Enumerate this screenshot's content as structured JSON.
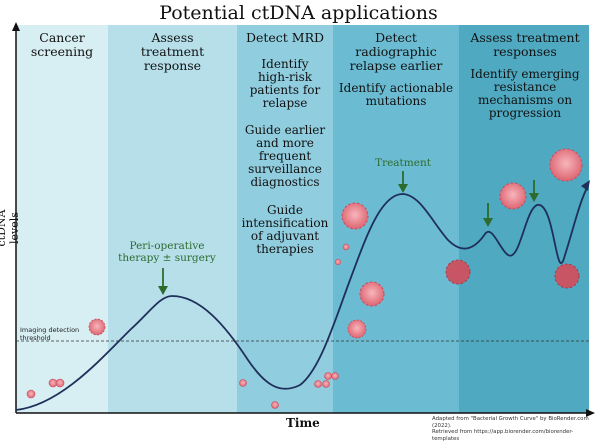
{
  "title": "Potential ctDNA applications",
  "axes": {
    "y_label": "ctDNA levels",
    "x_label": "Time",
    "threshold_label_line1": "Imaging detection",
    "threshold_label_line2": "threshold"
  },
  "phases": [
    {
      "name": "cancer-screening",
      "lines": [
        "Cancer",
        "screening"
      ],
      "color": "#d7eef3"
    },
    {
      "name": "assess-treatment-response",
      "lines": [
        "Assess",
        "treatment",
        "response"
      ],
      "color": "#b6dfea"
    },
    {
      "name": "detect-mrd",
      "lines": [
        "Detect MRD"
      ],
      "color": "#90cddf"
    },
    {
      "name": "detect-radiographic-relapse",
      "lines": [
        "Detect radiographic",
        "relapse earlier"
      ],
      "color": "#6bbcd3"
    },
    {
      "name": "assess-treatment-responses",
      "lines": [
        "Assess treatment",
        "responses"
      ],
      "color": "#4fa9c1"
    }
  ],
  "mrd_items": [
    {
      "name": "identify-high-risk",
      "lines": [
        "Identify",
        "high-risk",
        "patients for",
        "relapse"
      ]
    },
    {
      "name": "guide-surveillance",
      "lines": [
        "Guide earlier",
        "and more",
        "frequent",
        "surveillance",
        "diagnostics"
      ]
    },
    {
      "name": "guide-intensification",
      "lines": [
        "Guide",
        "intensification",
        "of adjuvant",
        "therapies"
      ]
    }
  ],
  "relapse_items": [
    {
      "name": "identify-actionable-mutations",
      "lines": [
        "Identify actionable",
        "mutations"
      ]
    }
  ],
  "response_items": [
    {
      "name": "identify-resistance",
      "lines": [
        "Identify emerging",
        "resistance",
        "mechanisms on",
        "progression"
      ]
    }
  ],
  "annotations": {
    "perioperative_line1": "Peri-operative",
    "perioperative_line2": "therapy ± surgery",
    "treatment": "Treatment"
  },
  "credit": {
    "line1": "Adapted from \"Bacterial Growth Curve\" by BioRender.com (2022).",
    "line2": "Retrieved from https://app.biorender.com/biorender-templates"
  },
  "colors": {
    "curve": "#1f2f5a",
    "arrow_green": "#2e6b2e",
    "cell": "#e8808a"
  },
  "icons": [
    "tumor-cell-icon",
    "arrow-down-icon"
  ]
}
